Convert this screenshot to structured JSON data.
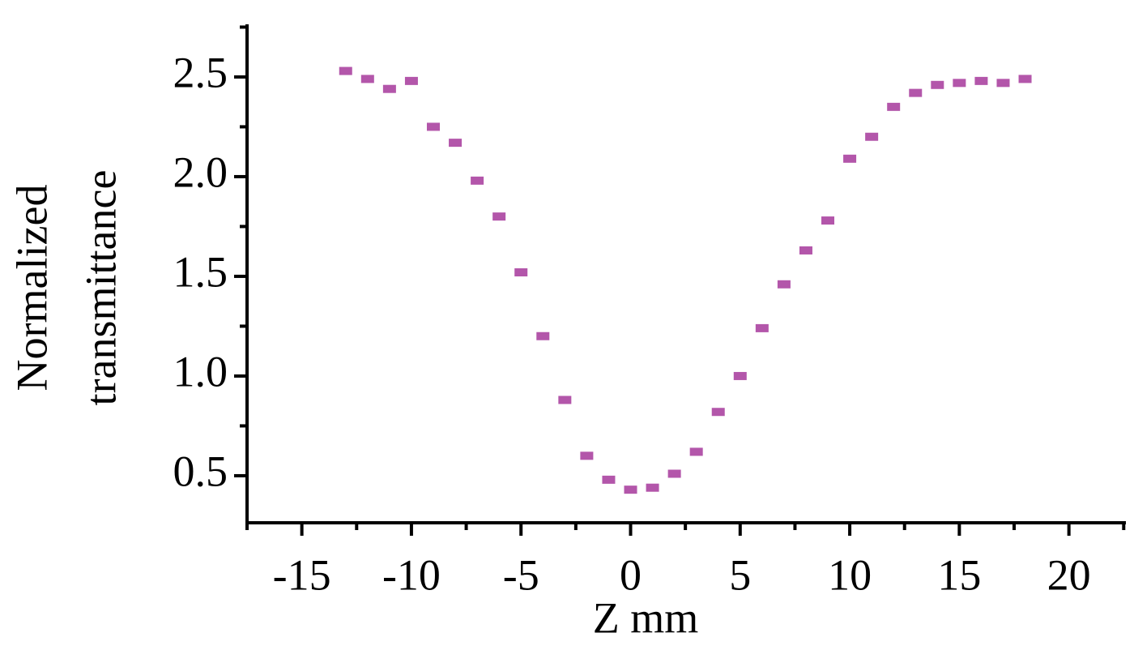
{
  "chart_data": {
    "type": "scatter",
    "xlabel": "Z mm",
    "ylabel": [
      "Normalized",
      "transmittance"
    ],
    "series": [
      {
        "color": "#b356aa",
        "x": [
          -13,
          -12,
          -11,
          -10,
          -9,
          -8,
          -7,
          -6,
          -5,
          -4,
          -3,
          -2,
          -1,
          0,
          1,
          2,
          3,
          4,
          5,
          6,
          7,
          8,
          9,
          10,
          11,
          12,
          13,
          14,
          15,
          16,
          17,
          18
        ],
        "values": [
          2.53,
          2.49,
          2.44,
          2.48,
          2.25,
          2.17,
          1.98,
          1.8,
          1.52,
          1.2,
          0.88,
          0.6,
          0.48,
          0.43,
          0.44,
          0.51,
          0.62,
          0.82,
          1.0,
          1.24,
          1.46,
          1.63,
          1.78,
          2.09,
          2.2,
          2.35,
          2.42,
          2.46,
          2.47,
          2.48,
          2.47,
          2.49
        ]
      }
    ],
    "xlim": [
      -17.5,
      22.6
    ],
    "ylim": [
      0.264,
      2.764
    ],
    "xticks": [
      -15,
      -10,
      -5,
      0,
      5,
      10,
      15,
      20
    ],
    "yticks": [
      {
        "value": 0.5,
        "label": "0.5"
      },
      {
        "value": 1,
        "label": "1.0"
      },
      1.5,
      {
        "value": 2,
        "label": "2.0"
      },
      2.5
    ]
  }
}
